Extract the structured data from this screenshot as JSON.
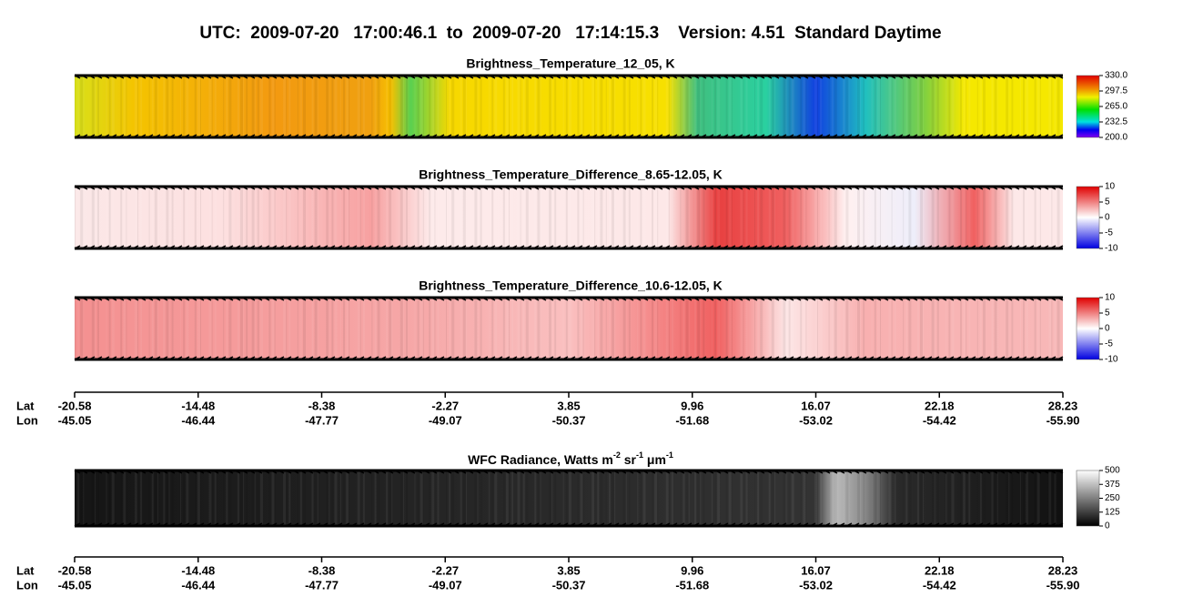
{
  "header": {
    "title": "UTC:  2009-07-20   17:00:46.1  to  2009-07-20   17:14:15.3    Version: 4.51  Standard Daytime"
  },
  "panels": [
    {
      "title": "Brightness_Temperature_12_05, K",
      "colorbar": [
        "330.0",
        "297.5",
        "265.0",
        "232.5",
        "200.0"
      ]
    },
    {
      "title": "Brightness_Temperature_Difference_8.65-12.05, K",
      "colorbar": [
        "10",
        "5",
        "0",
        "-5",
        "-10"
      ]
    },
    {
      "title": "Brightness_Temperature_Difference_10.6-12.05, K",
      "colorbar": [
        "10",
        "5",
        "0",
        "-5",
        "-10"
      ]
    }
  ],
  "wfc": {
    "title_parts": [
      {
        "text": "WFC Radiance, Watts m"
      },
      {
        "sup": "-2"
      },
      {
        "text": " sr"
      },
      {
        "sup": "-1"
      },
      {
        "text": " μm"
      },
      {
        "sup": "-1"
      }
    ],
    "colorbar": [
      "500",
      "375",
      "250",
      "125",
      "0"
    ]
  },
  "axes": [
    {
      "lat_label": "Lat",
      "lon_label": "Lon",
      "lat": [
        "-20.58",
        "-14.48",
        "-8.38",
        "-2.27",
        "3.85",
        "9.96",
        "16.07",
        "22.18",
        "28.23"
      ],
      "lon": [
        "-45.05",
        "-46.44",
        "-47.77",
        "-49.07",
        "-50.37",
        "-51.68",
        "-53.02",
        "-54.42",
        "-55.90"
      ]
    },
    {
      "lat_label": "Lat",
      "lon_label": "Lon",
      "lat": [
        "-20.58",
        "-14.48",
        "-8.38",
        "-2.27",
        "3.85",
        "9.96",
        "16.07",
        "22.18",
        "28.23"
      ],
      "lon": [
        "-45.05",
        "-46.44",
        "-47.77",
        "-49.07",
        "-50.37",
        "-51.68",
        "-53.02",
        "-54.42",
        "-55.90"
      ]
    }
  ]
}
